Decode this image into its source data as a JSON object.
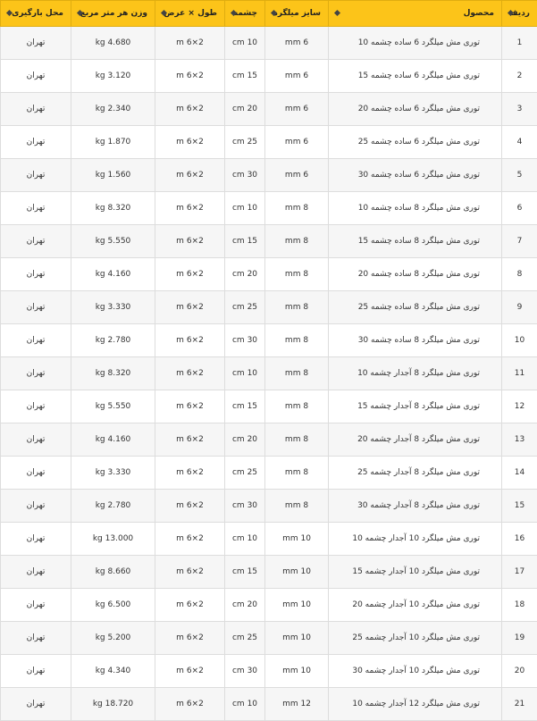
{
  "table": {
    "headers": [
      "ردیف",
      "محصول",
      "سایز میلگرد",
      "چشمه",
      "طول × عرض",
      "وزن هر متر مربع",
      "محل بارگیری"
    ],
    "rows": [
      [
        "1",
        "توری مش میلگرد 6 ساده چشمه 10",
        "6 mm",
        "10 cm",
        "2×6 m",
        "4.680 kg",
        "تهران"
      ],
      [
        "2",
        "توری مش میلگرد 6 ساده چشمه 15",
        "6 mm",
        "15 cm",
        "2×6 m",
        "3.120 kg",
        "تهران"
      ],
      [
        "3",
        "توری مش میلگرد 6 ساده چشمه 20",
        "6 mm",
        "20 cm",
        "2×6 m",
        "2.340 kg",
        "تهران"
      ],
      [
        "4",
        "توری مش میلگرد 6 ساده چشمه 25",
        "6 mm",
        "25 cm",
        "2×6 m",
        "1.870 kg",
        "تهران"
      ],
      [
        "5",
        "توری مش میلگرد 6 ساده چشمه 30",
        "6 mm",
        "30 cm",
        "2×6 m",
        "1.560 kg",
        "تهران"
      ],
      [
        "6",
        "توری مش میلگرد 8 ساده چشمه 10",
        "8 mm",
        "10 cm",
        "2×6 m",
        "8.320 kg",
        "تهران"
      ],
      [
        "7",
        "توری مش میلگرد 8 ساده چشمه 15",
        "8 mm",
        "15 cm",
        "2×6 m",
        "5.550 kg",
        "تهران"
      ],
      [
        "8",
        "توری مش میلگرد 8 ساده چشمه 20",
        "8 mm",
        "20 cm",
        "2×6 m",
        "4.160 kg",
        "تهران"
      ],
      [
        "9",
        "توری مش میلگرد 8 ساده چشمه 25",
        "8 mm",
        "25 cm",
        "2×6 m",
        "3.330 kg",
        "تهران"
      ],
      [
        "10",
        "توری مش میلگرد 8 ساده چشمه 30",
        "8 mm",
        "30 cm",
        "2×6 m",
        "2.780 kg",
        "تهران"
      ],
      [
        "11",
        "توری مش میلگرد 8 آجدار چشمه 10",
        "8 mm",
        "10 cm",
        "2×6 m",
        "8.320 kg",
        "تهران"
      ],
      [
        "12",
        "توری مش میلگرد 8 آجدار چشمه 15",
        "8 mm",
        "15 cm",
        "2×6 m",
        "5.550 kg",
        "تهران"
      ],
      [
        "13",
        "توری مش میلگرد 8 آجدار چشمه 20",
        "8 mm",
        "20 cm",
        "2×6 m",
        "4.160 kg",
        "تهران"
      ],
      [
        "14",
        "توری مش میلگرد 8 آجدار چشمه 25",
        "8 mm",
        "25 cm",
        "2×6 m",
        "3.330 kg",
        "تهران"
      ],
      [
        "15",
        "توری مش میلگرد 8 آجدار چشمه 30",
        "8 mm",
        "30 cm",
        "2×6 m",
        "2.780 kg",
        "تهران"
      ],
      [
        "16",
        "توری مش میلگرد 10 آجدار چشمه 10",
        "10 mm",
        "10 cm",
        "2×6 m",
        "13.000 kg",
        "تهران"
      ],
      [
        "17",
        "توری مش میلگرد 10 آجدار چشمه 15",
        "10 mm",
        "15 cm",
        "2×6 m",
        "8.660 kg",
        "تهران"
      ],
      [
        "18",
        "توری مش میلگرد 10 آجدار چشمه 20",
        "10 mm",
        "20 cm",
        "2×6 m",
        "6.500 kg",
        "تهران"
      ],
      [
        "19",
        "توری مش میلگرد 10 آجدار چشمه 25",
        "10 mm",
        "25 cm",
        "2×6 m",
        "5.200 kg",
        "تهران"
      ],
      [
        "20",
        "توری مش میلگرد 10 آجدار چشمه 30",
        "10 mm",
        "30 cm",
        "2×6 m",
        "4.340 kg",
        "تهران"
      ],
      [
        "21",
        "توری مش میلگرد 12 آجدار چشمه 10",
        "12 mm",
        "10 cm",
        "2×6 m",
        "18.720 kg",
        "تهران"
      ]
    ]
  }
}
